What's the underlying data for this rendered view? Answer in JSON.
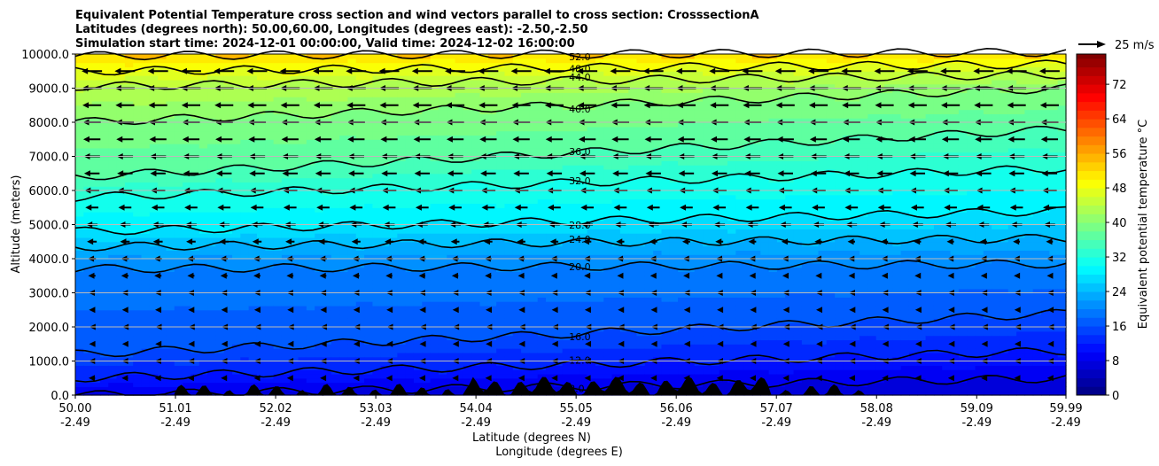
{
  "chart_data": {
    "type": "heatmap",
    "title_lines": [
      "Equivalent Potential Temperature cross section and wind vectors parallel to cross section: CrosssectionA",
      "Latitudes (degrees north): 50.00,60.00, Longitudes (degrees east): -2.50,-2.50",
      "Simulation start time: 2024-12-01 00:00:00, Valid time: 2024-12-02 16:00:00"
    ],
    "ylabel": "Altitude (meters)",
    "xlabel": "Latitude (degrees N)",
    "xlabel2": "Longitude (degrees E)",
    "xlim": [
      50.0,
      59.99
    ],
    "ylim": [
      0,
      10000
    ],
    "xticks": [
      {
        "lat": "50.00",
        "lon": "-2.49"
      },
      {
        "lat": "51.01",
        "lon": "-2.49"
      },
      {
        "lat": "52.02",
        "lon": "-2.49"
      },
      {
        "lat": "53.03",
        "lon": "-2.49"
      },
      {
        "lat": "54.04",
        "lon": "-2.49"
      },
      {
        "lat": "55.05",
        "lon": "-2.49"
      },
      {
        "lat": "56.06",
        "lon": "-2.49"
      },
      {
        "lat": "57.07",
        "lon": "-2.49"
      },
      {
        "lat": "58.08",
        "lon": "-2.49"
      },
      {
        "lat": "59.09",
        "lon": "-2.49"
      },
      {
        "lat": "59.99",
        "lon": "-2.49"
      }
    ],
    "yticks": [
      "0.0",
      "1000.0",
      "2000.0",
      "3000.0",
      "4000.0",
      "5000.0",
      "6000.0",
      "7000.0",
      "8000.0",
      "9000.0",
      "10000.0"
    ],
    "colorbar": {
      "label": "Equivalent potential temperature $^\\circ$C",
      "label_text": "Equivalent potential temperature °C",
      "range": [
        0,
        79
      ],
      "ticks": [
        "0",
        "8",
        "16",
        "24",
        "32",
        "40",
        "48",
        "56",
        "64",
        "72"
      ]
    },
    "quiver_key": "25 m/s",
    "contours": [
      {
        "level": 52,
        "label": "52.0",
        "alt_left": 9950,
        "alt_right": 10050
      },
      {
        "level": 48,
        "label": "48.0",
        "alt_left": 9500,
        "alt_right": 9700
      },
      {
        "level": 44,
        "label": "44.0",
        "alt_left": 9050,
        "alt_right": 9400
      },
      {
        "level": 40,
        "label": "40.0",
        "alt_left": 8000,
        "alt_right": 9000
      },
      {
        "level": 36,
        "label": "36.0",
        "alt_left": 6400,
        "alt_right": 7800
      },
      {
        "level": 32,
        "label": "32.0",
        "alt_left": 5800,
        "alt_right": 6650
      },
      {
        "level": 28,
        "label": "28.0",
        "alt_left": 4800,
        "alt_right": 5400
      },
      {
        "level": 24,
        "label": "24.0",
        "alt_left": 4350,
        "alt_right": 4600
      },
      {
        "level": 20,
        "label": "20.0",
        "alt_left": 3700,
        "alt_right": 3850
      },
      {
        "level": 16,
        "label": "16.0",
        "alt_left": 1200,
        "alt_right": 2400
      },
      {
        "level": 12,
        "label": "12.0",
        "alt_left": 500,
        "alt_right": 1300
      },
      {
        "level": 8,
        "label": "8.0",
        "alt_left": 0,
        "alt_right": 500
      }
    ],
    "wind_u_by_altitude": [
      {
        "alt": 500,
        "u": -8
      },
      {
        "alt": 2000,
        "u": -6
      },
      {
        "alt": 4000,
        "u": -10
      },
      {
        "alt": 6000,
        "u": -18
      },
      {
        "alt": 8000,
        "u": -22
      },
      {
        "alt": 9500,
        "u": -25
      }
    ],
    "terrain": "black orography between 51 and 58 degrees N, up to ~500 m"
  }
}
